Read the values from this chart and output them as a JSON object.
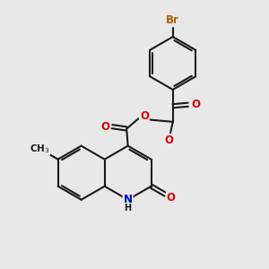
{
  "bg_color": "#e8e8e8",
  "bond_color": "#1a1a1a",
  "bond_width": 1.5,
  "atom_colors": {
    "O": "#dd0000",
    "N": "#0000cc",
    "Br": "#b06000",
    "C": "#1a1a1a",
    "H": "#1a1a1a"
  },
  "font_size_atom": 8.5,
  "fig_size": [
    3.0,
    3.0
  ],
  "dpi": 100,
  "xlim": [
    0,
    10
  ],
  "ylim": [
    0,
    10
  ]
}
